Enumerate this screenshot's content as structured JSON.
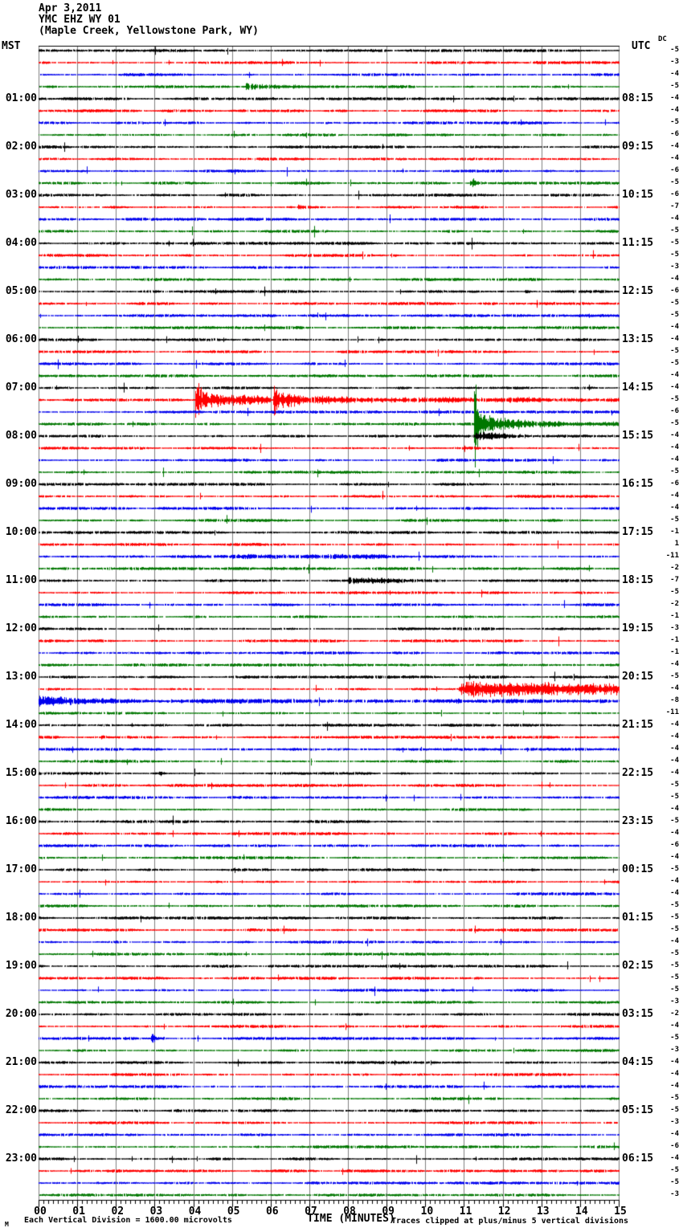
{
  "header": {
    "date": "Apr 3,2011",
    "station": "YMC EHZ WY 01",
    "location": "(Maple Creek, Yellowstone Park, WY)"
  },
  "corner_labels": {
    "left": "MST",
    "right": "UTC",
    "dc": "DC"
  },
  "x_axis": {
    "title": "TIME (MINUTES)",
    "range_minutes": [
      0,
      15
    ],
    "ticks": [
      "00",
      "01",
      "02",
      "03",
      "04",
      "05",
      "06",
      "07",
      "08",
      "09",
      "10",
      "11",
      "12",
      "13",
      "14",
      "15"
    ]
  },
  "footer": {
    "scale_note": "Each Vertical Division = 1600.00 microvolts",
    "clip_note": "Traces clipped at plus/minus 5 vertical divisions",
    "corner_glyph": "M"
  },
  "palette": {
    "k": "#000000",
    "r": "#ff0000",
    "b": "#0000ee",
    "g": "#007700",
    "grid": "#808080"
  },
  "chart_data": {
    "type": "line",
    "subtype": "helicorder",
    "line_duration_minutes": 15,
    "clip_divisions": 5,
    "microvolts_per_division": 1600,
    "timezone_left": "MST",
    "timezone_right": "UTC",
    "rows": [
      {
        "c": "k",
        "dc": -5
      },
      {
        "c": "r",
        "dc": -3
      },
      {
        "c": "b",
        "dc": -4
      },
      {
        "c": "g",
        "dc": -5,
        "ev": [
          [
            5.35,
            5.6,
            0.5,
            0.2
          ],
          [
            5.6,
            6.6,
            0.2,
            0.1
          ],
          [
            6.6,
            7.6,
            0.1,
            0.03
          ]
        ]
      },
      {
        "c": "k",
        "dc": -4,
        "mst": "01:00",
        "utc": "08:15"
      },
      {
        "c": "r",
        "dc": -4
      },
      {
        "c": "b",
        "dc": -5
      },
      {
        "c": "g",
        "dc": -6
      },
      {
        "c": "k",
        "dc": -4,
        "mst": "02:00",
        "utc": "09:15"
      },
      {
        "c": "r",
        "dc": -4
      },
      {
        "c": "b",
        "dc": -6
      },
      {
        "c": "g",
        "dc": -5,
        "ev": [
          [
            11.15,
            11.3,
            0.6,
            0.15
          ],
          [
            11.3,
            11.6,
            0.1,
            0.03
          ]
        ]
      },
      {
        "c": "k",
        "dc": -6,
        "mst": "03:00",
        "utc": "10:15"
      },
      {
        "c": "r",
        "dc": -7,
        "ev": [
          [
            6.7,
            6.9,
            0.2,
            0.05
          ]
        ]
      },
      {
        "c": "b",
        "dc": -4
      },
      {
        "c": "g",
        "dc": -5
      },
      {
        "c": "k",
        "dc": -5,
        "mst": "04:00",
        "utc": "11:15"
      },
      {
        "c": "r",
        "dc": -5,
        "ev": [
          [
            9.1,
            9.25,
            0.18,
            0.04
          ]
        ]
      },
      {
        "c": "b",
        "dc": -3
      },
      {
        "c": "g",
        "dc": -4
      },
      {
        "c": "k",
        "dc": -6,
        "mst": "05:00",
        "utc": "12:15",
        "ev": [
          [
            12.55,
            12.7,
            0.18,
            0.04
          ]
        ]
      },
      {
        "c": "r",
        "dc": -5
      },
      {
        "c": "b",
        "dc": -5
      },
      {
        "c": "g",
        "dc": -4
      },
      {
        "c": "k",
        "dc": -4,
        "mst": "06:00",
        "utc": "13:15"
      },
      {
        "c": "r",
        "dc": -5
      },
      {
        "c": "b",
        "dc": -5
      },
      {
        "c": "g",
        "dc": -4
      },
      {
        "c": "k",
        "dc": -4,
        "mst": "07:00",
        "utc": "14:15"
      },
      {
        "c": "r",
        "dc": -5,
        "ev": [
          [
            4.05,
            4.2,
            2.0,
            1.2
          ],
          [
            4.2,
            5.0,
            0.9,
            0.4
          ],
          [
            5.0,
            6.0,
            0.4,
            0.25
          ],
          [
            6.05,
            6.25,
            1.5,
            0.8
          ],
          [
            6.25,
            7.0,
            0.7,
            0.35
          ],
          [
            7.0,
            9.0,
            0.3,
            0.17
          ],
          [
            9.0,
            15,
            0.17,
            0.12
          ]
        ]
      },
      {
        "c": "b",
        "dc": -6
      },
      {
        "c": "g",
        "dc": -5,
        "ev": [
          [
            11.24,
            11.32,
            5,
            5
          ],
          [
            11.32,
            11.5,
            2.5,
            1.0
          ],
          [
            11.5,
            12.3,
            0.8,
            0.35
          ],
          [
            12.3,
            13.5,
            0.35,
            0.15
          ],
          [
            13.5,
            15,
            0.15,
            0.08
          ]
        ]
      },
      {
        "c": "k",
        "dc": -4,
        "mst": "08:00",
        "utc": "15:15",
        "ev": [
          [
            11.3,
            12.2,
            0.27,
            0.1
          ],
          [
            12.2,
            13.2,
            0.1,
            0.05
          ]
        ]
      },
      {
        "c": "r",
        "dc": -4
      },
      {
        "c": "b",
        "dc": -4
      },
      {
        "c": "g",
        "dc": -5
      },
      {
        "c": "k",
        "dc": -6,
        "mst": "09:00",
        "utc": "16:15"
      },
      {
        "c": "r",
        "dc": -4
      },
      {
        "c": "b",
        "dc": -4
      },
      {
        "c": "g",
        "dc": -5
      },
      {
        "c": "k",
        "dc": -1,
        "mst": "10:00",
        "utc": "17:15"
      },
      {
        "c": "r",
        "dc": 1
      },
      {
        "c": "b",
        "dc": -11,
        "ev": [
          [
            5,
            9,
            0.1,
            0.1
          ]
        ]
      },
      {
        "c": "g",
        "dc": -2
      },
      {
        "c": "k",
        "dc": -7,
        "mst": "11:00",
        "utc": "18:15",
        "ev": [
          [
            8.0,
            8.6,
            0.27,
            0.15
          ],
          [
            8.6,
            9.3,
            0.2,
            0.13
          ],
          [
            9.3,
            10.5,
            0.13,
            0.07
          ]
        ]
      },
      {
        "c": "r",
        "dc": -5
      },
      {
        "c": "b",
        "dc": -2
      },
      {
        "c": "g",
        "dc": -1
      },
      {
        "c": "k",
        "dc": -3,
        "mst": "12:00",
        "utc": "19:15"
      },
      {
        "c": "r",
        "dc": -1
      },
      {
        "c": "b",
        "dc": -1
      },
      {
        "c": "g",
        "dc": -4
      },
      {
        "c": "k",
        "dc": -5,
        "mst": "13:00",
        "utc": "20:15"
      },
      {
        "c": "r",
        "dc": -4,
        "ev": [
          [
            10.85,
            11.05,
            0.4,
            0.67
          ],
          [
            11.05,
            15,
            0.67,
            0.55
          ]
        ]
      },
      {
        "c": "b",
        "dc": -8,
        "ev": [
          [
            0,
            0.35,
            0.55,
            0.4
          ],
          [
            0.35,
            2.0,
            0.4,
            0.13
          ],
          [
            2.0,
            15,
            0.1,
            0.08
          ]
        ]
      },
      {
        "c": "g",
        "dc": -11
      },
      {
        "c": "k",
        "dc": -4,
        "mst": "14:00",
        "utc": "21:15"
      },
      {
        "c": "r",
        "dc": -4,
        "ev": [
          [
            1.6,
            1.75,
            0.18,
            0.04
          ]
        ]
      },
      {
        "c": "b",
        "dc": -4
      },
      {
        "c": "g",
        "dc": -4
      },
      {
        "c": "k",
        "dc": -4,
        "mst": "15:00",
        "utc": "22:15",
        "ev": [
          [
            3.1,
            3.3,
            0.18,
            0.04
          ]
        ]
      },
      {
        "c": "r",
        "dc": -5
      },
      {
        "c": "b",
        "dc": -5
      },
      {
        "c": "g",
        "dc": -4
      },
      {
        "c": "k",
        "dc": -5,
        "mst": "16:00",
        "utc": "23:15"
      },
      {
        "c": "r",
        "dc": -4
      },
      {
        "c": "b",
        "dc": -6
      },
      {
        "c": "g",
        "dc": -4
      },
      {
        "c": "k",
        "dc": -5,
        "mst": "17:00",
        "utc": "00:15"
      },
      {
        "c": "r",
        "dc": -4
      },
      {
        "c": "b",
        "dc": -4
      },
      {
        "c": "g",
        "dc": -5
      },
      {
        "c": "k",
        "dc": -5,
        "mst": "18:00",
        "utc": "01:15"
      },
      {
        "c": "r",
        "dc": -5
      },
      {
        "c": "b",
        "dc": -4
      },
      {
        "c": "g",
        "dc": -5
      },
      {
        "c": "k",
        "dc": -5,
        "mst": "19:00",
        "utc": "02:15"
      },
      {
        "c": "r",
        "dc": -5
      },
      {
        "c": "b",
        "dc": -5
      },
      {
        "c": "g",
        "dc": -3
      },
      {
        "c": "k",
        "dc": -2,
        "mst": "20:00",
        "utc": "03:15"
      },
      {
        "c": "r",
        "dc": -4
      },
      {
        "c": "b",
        "dc": -5,
        "ev": [
          [
            2.9,
            3.05,
            0.65,
            0.15
          ],
          [
            3.05,
            3.3,
            0.15,
            0.04
          ]
        ]
      },
      {
        "c": "g",
        "dc": -3
      },
      {
        "c": "k",
        "dc": -4,
        "mst": "21:00",
        "utc": "04:15"
      },
      {
        "c": "r",
        "dc": -4
      },
      {
        "c": "b",
        "dc": -4
      },
      {
        "c": "g",
        "dc": -5
      },
      {
        "c": "k",
        "dc": -5,
        "mst": "22:00",
        "utc": "05:15"
      },
      {
        "c": "r",
        "dc": -3
      },
      {
        "c": "b",
        "dc": -4
      },
      {
        "c": "g",
        "dc": -6
      },
      {
        "c": "k",
        "dc": -4,
        "mst": "23:00",
        "utc": "06:15"
      },
      {
        "c": "r",
        "dc": -5
      },
      {
        "c": "b",
        "dc": -5
      },
      {
        "c": "g",
        "dc": -3
      }
    ]
  }
}
